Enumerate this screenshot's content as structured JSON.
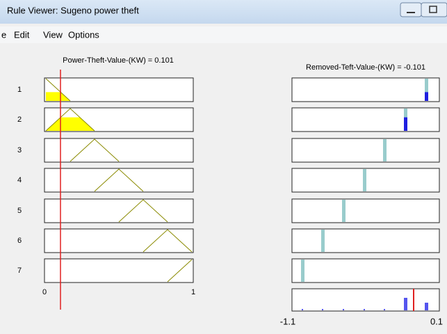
{
  "window": {
    "title": "Rule Viewer: Sugeno power theft"
  },
  "menu": [
    "e",
    "Edit",
    "View",
    "Options"
  ],
  "input": {
    "label": "Power-Theft-Value-(KW) = 0.101",
    "axis": [
      "0",
      "1"
    ]
  },
  "output": {
    "label": "Removed-Teft-Value-(KW) = -0.101",
    "axis": [
      "-1.1",
      "0.1"
    ]
  },
  "rules": [
    "1",
    "2",
    "3",
    "4",
    "5",
    "6",
    "7"
  ]
}
